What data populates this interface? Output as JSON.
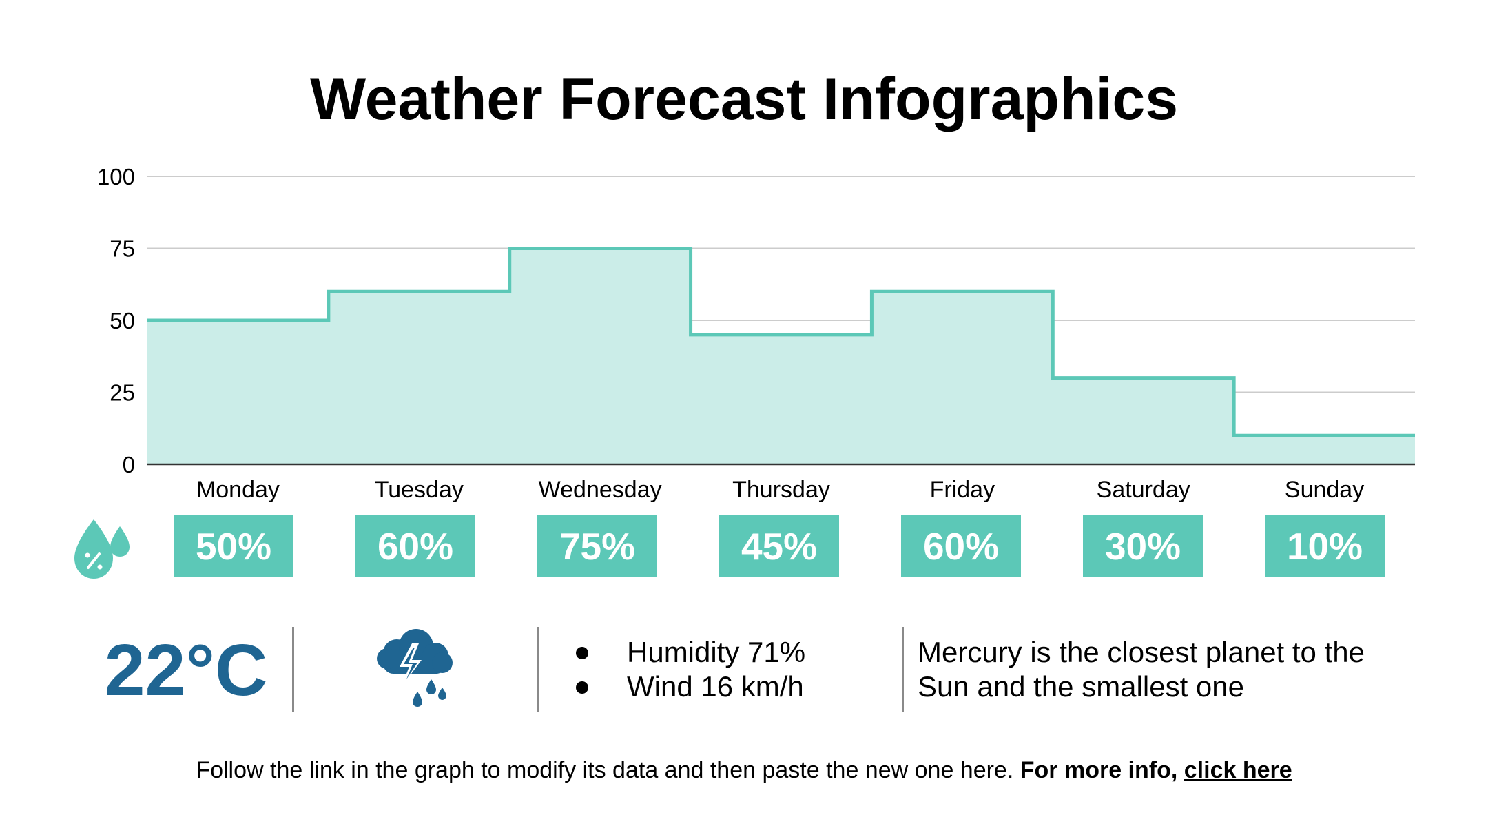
{
  "title": "Weather Forecast Infographics",
  "colors": {
    "accent": "#5cc8b7",
    "area_fill": "#cbede8",
    "line": "#5cc8b7",
    "temperature": "#1f6592",
    "gridline": "#cccccc"
  },
  "icons": {
    "precipitation": "water-drop-percent-icon",
    "weather": "storm-cloud-lightning-icon"
  },
  "chart_data": {
    "type": "area",
    "step": true,
    "categories": [
      "Monday",
      "Tuesday",
      "Wednesday",
      "Thursday",
      "Friday",
      "Saturday",
      "Sunday"
    ],
    "values": [
      50,
      60,
      75,
      45,
      60,
      30,
      10
    ],
    "ylim": [
      0,
      100
    ],
    "yticks": [
      "0",
      "25",
      "50",
      "75",
      "100"
    ],
    "grid": true,
    "title": "",
    "xlabel": "",
    "ylabel": ""
  },
  "precipitation": [
    "50%",
    "60%",
    "75%",
    "45%",
    "60%",
    "30%",
    "10%"
  ],
  "temperature": "22°C",
  "conditions": [
    {
      "label": "Humidity 71%"
    },
    {
      "label": "Wind 16 km/h"
    }
  ],
  "description_lines": [
    "Mercury is the closest planet to the",
    "Sun and the smallest one"
  ],
  "footer": {
    "text": "Follow the link in the graph to modify its data and then paste the new one here.",
    "bold_text": "For more info,",
    "link_text": "click here"
  }
}
